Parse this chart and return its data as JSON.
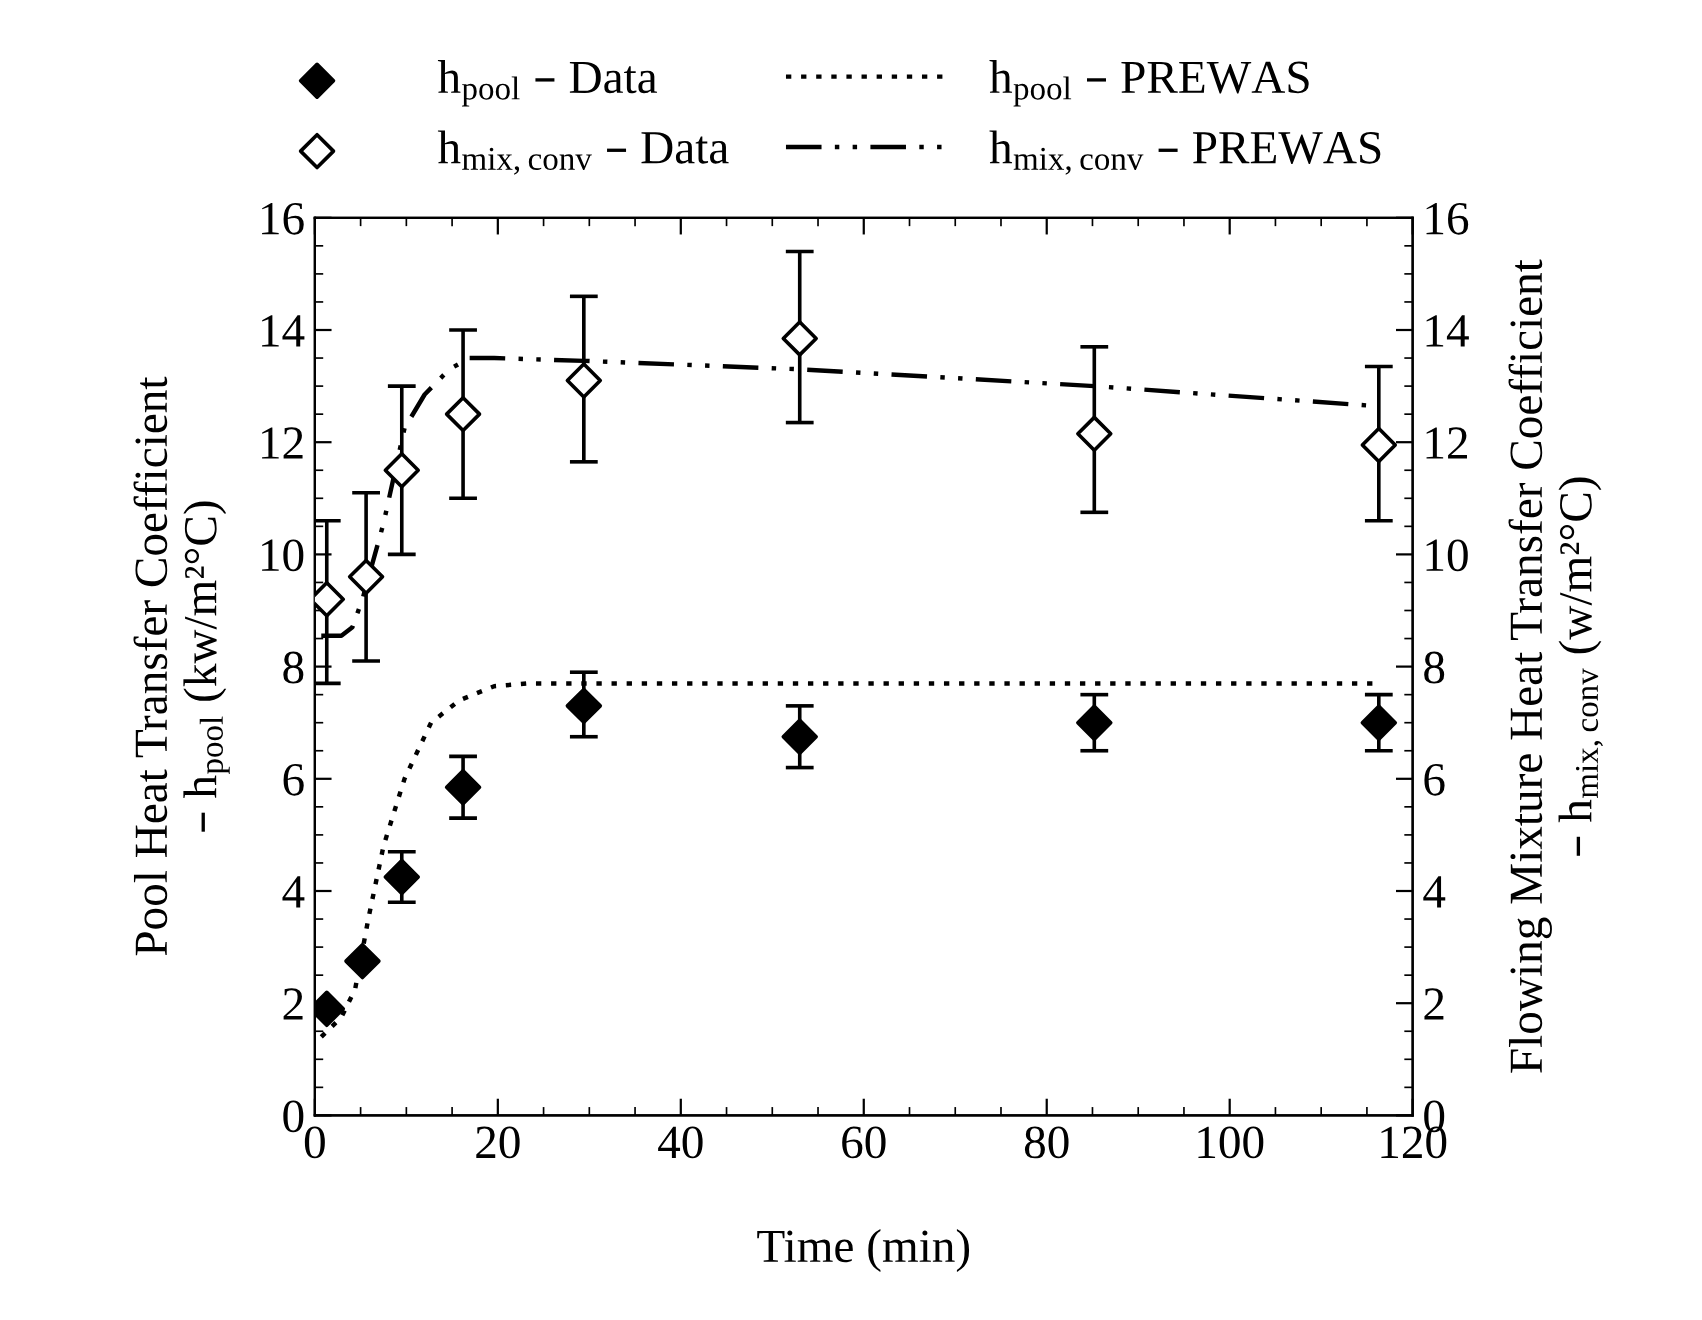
{
  "chart_data": {
    "type": "scatter",
    "xlabel": "Time (min)",
    "ylabel": "Pool Heat Transfer Coefficient\n– h$_{pool}$ (kw/m²°C)",
    "y2label": "Flowing Mixture Heat Transfer Coefficient\n– h$_{mix,conv}$ (w/m²°C)",
    "xlim": [
      0,
      120
    ],
    "xticks": [
      0,
      20,
      40,
      60,
      80,
      100,
      120
    ],
    "ylim": [
      0,
      16
    ],
    "yticks": [
      0,
      2,
      4,
      6,
      8,
      10,
      12,
      14,
      16
    ],
    "y2lim": [
      0,
      16
    ],
    "y2ticks": [
      0,
      2,
      4,
      6,
      8,
      10,
      12,
      14,
      16
    ],
    "grid": false,
    "legend": "top",
    "series": [
      {
        "name": "h$_{pool}$ – Data",
        "marker": "diamond",
        "color": "#000000",
        "x": [
          1.3,
          5.2,
          9.5,
          16.2,
          29.4,
          53,
          85.2,
          116.3
        ],
        "values": [
          1.9,
          2.75,
          4.25,
          5.85,
          7.3,
          6.75,
          7.0,
          7.0
        ],
        "errors": [
          null,
          null,
          [
            3.8,
            4.7
          ],
          [
            5.3,
            6.4
          ],
          [
            6.75,
            7.9
          ],
          [
            6.2,
            7.3
          ],
          [
            6.5,
            7.5
          ],
          [
            6.5,
            7.5
          ]
        ]
      },
      {
        "name": "h$_{mix,conv}$ – Data",
        "axis": "y2",
        "marker": "diamond",
        "color": "#ffffff",
        "x": [
          1.3,
          5.6,
          9.5,
          16.2,
          29.4,
          53,
          85.2,
          116.3
        ],
        "values": [
          9.2,
          9.6,
          11.5,
          12.5,
          13.1,
          13.85,
          12.15,
          11.95
        ],
        "errors": [
          [
            7.7,
            10.6
          ],
          [
            8.1,
            11.1
          ],
          [
            10.0,
            13.0
          ],
          [
            11.0,
            14.0
          ],
          [
            11.65,
            14.6
          ],
          [
            12.35,
            15.4
          ],
          [
            10.75,
            13.7
          ],
          [
            10.6,
            13.35
          ]
        ]
      },
      {
        "name": "h$_{pool}$ – PREWAS",
        "type": "line",
        "line_style": "dotted",
        "marker": "none",
        "color": "#000000",
        "x": [
          0.7,
          2.9,
          4.4,
          5.9,
          7.5,
          9.8,
          12.7,
          15.8,
          19.6,
          23.3,
          115.6
        ],
        "values": [
          1.4,
          1.75,
          2.25,
          3.55,
          4.8,
          6.0,
          7.0,
          7.4,
          7.65,
          7.7,
          7.7
        ]
      },
      {
        "name": "h$_{mix,conv}$ – PREWAS",
        "type": "line",
        "axis": "y2",
        "line_style": "dashdotdot",
        "marker": "none",
        "color": "#000000",
        "x": [
          0.7,
          2.9,
          4.1,
          5.2,
          7.5,
          9.8,
          12.0,
          14.7,
          16.9,
          19.6,
          29.4,
          53,
          85.2,
          115.5
        ],
        "values": [
          8.55,
          8.55,
          8.7,
          9.2,
          10.55,
          12.25,
          12.85,
          13.3,
          13.5,
          13.5,
          13.45,
          13.3,
          13.0,
          12.65
        ]
      }
    ]
  }
}
